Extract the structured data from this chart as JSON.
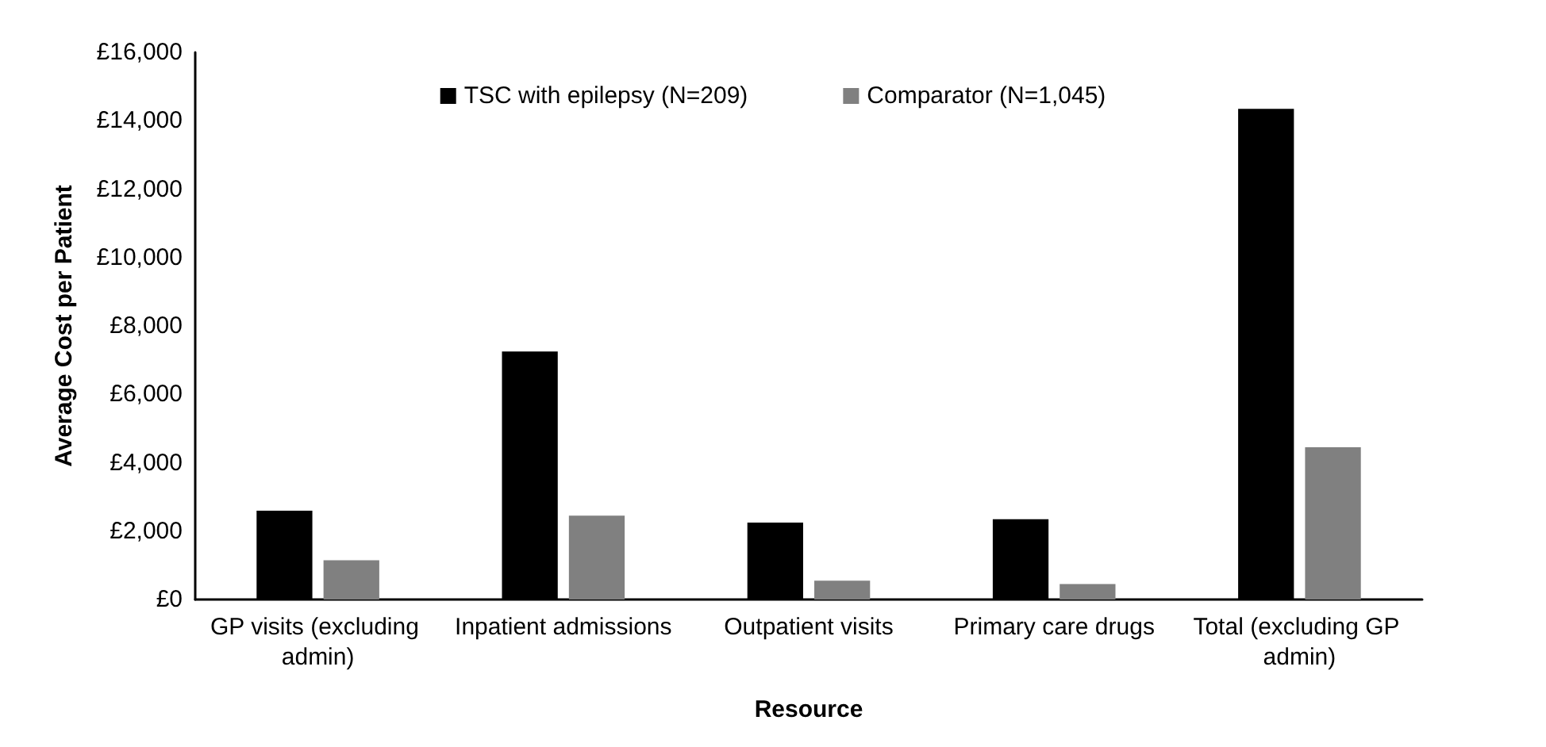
{
  "chart_data": {
    "type": "bar",
    "xlabel": "Resource",
    "ylabel": "Average Cost per Patient",
    "categories": [
      "GP visits (excluding admin)",
      "Inpatient admissions",
      "Outpatient visits",
      "Primary care drugs",
      "Total (excluding GP admin)"
    ],
    "series": [
      {
        "name": "TSC with epilepsy (N=209)",
        "color": "#000000",
        "values": [
          2600,
          7250,
          2250,
          2350,
          14350
        ]
      },
      {
        "name": "Comparator (N=1,045)",
        "color": "#808080",
        "values": [
          1150,
          2450,
          550,
          450,
          4450
        ]
      }
    ],
    "ylim": [
      0,
      16000
    ],
    "yticks": [
      {
        "value": 0,
        "label": "£0"
      },
      {
        "value": 2000,
        "label": "£2,000"
      },
      {
        "value": 4000,
        "label": "£4,000"
      },
      {
        "value": 6000,
        "label": "£6,000"
      },
      {
        "value": 8000,
        "label": "£8,000"
      },
      {
        "value": 10000,
        "label": "£10,000"
      },
      {
        "value": 12000,
        "label": "£12,000"
      },
      {
        "value": 14000,
        "label": "£14,000"
      },
      {
        "value": 16000,
        "label": "£16,000"
      }
    ],
    "grid": false,
    "legend": "top"
  }
}
